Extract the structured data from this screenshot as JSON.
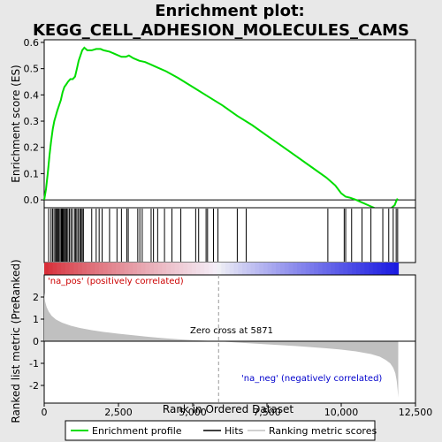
{
  "title_line1": "Enrichment plot:",
  "title_line2": "KEGG_CELL_ADHESION_MOLECULES_CAMS",
  "colors": {
    "es_line": "#00dd00",
    "hits": "#000000",
    "metric_fill": "#c0c0c0",
    "pos_label": "#cc0000",
    "neg_label": "#0000cc",
    "crossing_line": "#999999",
    "panel_bg": "#ffffff",
    "outer_bg": "#e8e8e8"
  },
  "chart_data": [
    {
      "type": "line",
      "name": "enrichment-score-panel",
      "ylabel": "Enrichment score (ES)",
      "ylim": [
        -0.03,
        0.61
      ],
      "yticks": [
        0.0,
        0.1,
        0.2,
        0.3,
        0.4,
        0.5,
        0.6
      ],
      "ytick_labels": [
        "0.0",
        "0.1",
        "0.2",
        "0.3",
        "0.4",
        "0.5",
        "0.6"
      ],
      "xlim": [
        0,
        12500
      ],
      "series": [
        {
          "x": [
            0,
            60,
            120,
            180,
            230,
            290,
            340,
            390,
            440,
            500,
            560,
            620,
            680,
            740,
            800,
            880,
            960,
            1040,
            1100,
            1160,
            1220,
            1280,
            1350,
            1450,
            1600,
            1750,
            1900,
            2000,
            2200,
            2400,
            2600,
            2750,
            2850,
            3000,
            3200,
            3400,
            3600,
            3800,
            4100,
            4500,
            5000,
            5500,
            6000,
            6500,
            7000,
            7500,
            8000,
            8500,
            9000,
            9500,
            9800,
            10000,
            10150,
            10300,
            10500,
            10700,
            10900,
            11100,
            11250,
            11400,
            11500,
            11600,
            11700,
            11800,
            11850,
            11900
          ],
          "y": [
            0.0,
            0.04,
            0.1,
            0.17,
            0.22,
            0.27,
            0.3,
            0.32,
            0.34,
            0.36,
            0.38,
            0.41,
            0.43,
            0.44,
            0.45,
            0.46,
            0.46,
            0.47,
            0.5,
            0.53,
            0.55,
            0.57,
            0.58,
            0.57,
            0.57,
            0.575,
            0.575,
            0.57,
            0.565,
            0.555,
            0.545,
            0.545,
            0.55,
            0.54,
            0.53,
            0.525,
            0.515,
            0.505,
            0.49,
            0.465,
            0.43,
            0.395,
            0.36,
            0.32,
            0.285,
            0.245,
            0.205,
            0.165,
            0.125,
            0.085,
            0.055,
            0.025,
            0.012,
            0.008,
            0.0,
            -0.01,
            -0.02,
            -0.03,
            -0.04,
            -0.045,
            -0.045,
            -0.038,
            -0.03,
            -0.02,
            -0.005,
            0.005
          ]
        }
      ]
    },
    {
      "type": "hits",
      "name": "gene-hits-panel",
      "hit_ranks": [
        150,
        230,
        280,
        330,
        380,
        410,
        440,
        470,
        500,
        540,
        580,
        610,
        640,
        680,
        700,
        720,
        760,
        800,
        850,
        900,
        950,
        1020,
        1060,
        1100,
        1150,
        1200,
        1240,
        1280,
        1320,
        1600,
        1750,
        1850,
        1950,
        2200,
        2450,
        2600,
        2780,
        2830,
        3150,
        3220,
        3300,
        3600,
        3680,
        3820,
        4050,
        4300,
        4600,
        5100,
        5200,
        5450,
        5500,
        5700,
        5850,
        6500,
        6800,
        9550,
        10100,
        10150,
        10350,
        10700,
        11000,
        11400,
        11600,
        11750,
        11850,
        11900
      ]
    },
    {
      "type": "area",
      "name": "ranked-list-metric-panel",
      "xlabel": "Rank in Ordered Dataset",
      "ylabel": "Ranked list metric (PreRanked)",
      "ylim": [
        -2.8,
        3.0
      ],
      "yticks": [
        -2,
        -1,
        0,
        1,
        2
      ],
      "ytick_labels": [
        "-2",
        "-1",
        "0",
        "1",
        "2"
      ],
      "xlim": [
        0,
        12500
      ],
      "xticks": [
        0,
        2500,
        5000,
        7500,
        10000,
        12500
      ],
      "xtick_labels": [
        "0",
        "2,500",
        "5,000",
        "7,500",
        "10,000",
        "12,500"
      ],
      "x": [
        0,
        30,
        80,
        150,
        250,
        400,
        600,
        900,
        1200,
        1600,
        2000,
        2500,
        3000,
        3500,
        4000,
        4500,
        5000,
        5500,
        5871,
        6500,
        7000,
        7500,
        8000,
        8500,
        9000,
        9500,
        10000,
        10500,
        11000,
        11300,
        11500,
        11650,
        11750,
        11820,
        11870,
        11900,
        11920
      ],
      "values": [
        2.2,
        1.8,
        1.55,
        1.35,
        1.15,
        0.98,
        0.84,
        0.7,
        0.6,
        0.5,
        0.42,
        0.34,
        0.27,
        0.2,
        0.14,
        0.09,
        0.05,
        0.02,
        0.0,
        -0.06,
        -0.1,
        -0.14,
        -0.18,
        -0.22,
        -0.27,
        -0.32,
        -0.38,
        -0.46,
        -0.58,
        -0.7,
        -0.85,
        -1.0,
        -1.2,
        -1.45,
        -1.8,
        -2.2,
        -2.55
      ],
      "pos_label": "'na_pos' (positively correlated)",
      "neg_label": "'na_neg' (negatively correlated)",
      "zero_cross_label": "Zero cross at 5871",
      "zero_cross_rank": 5871
    }
  ],
  "legend": {
    "items": [
      {
        "label": "Enrichment profile",
        "color": "#00dd00"
      },
      {
        "label": "Hits",
        "color": "#000000"
      },
      {
        "label": "Ranking metric scores",
        "color": "#c0c0c0"
      }
    ]
  }
}
